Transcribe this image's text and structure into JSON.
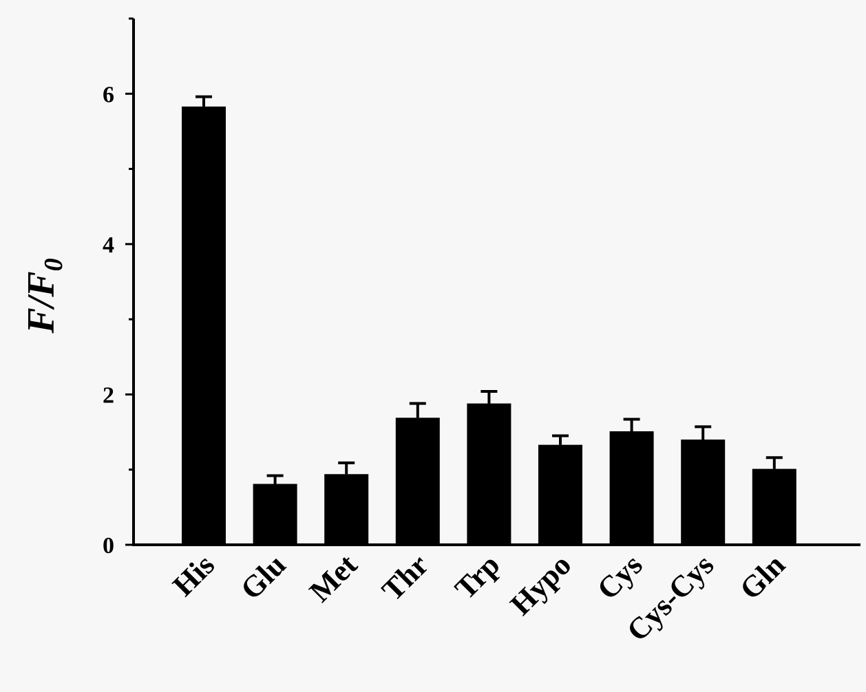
{
  "chart_data": {
    "type": "bar",
    "title": "",
    "xlabel": "",
    "ylabel": "F/F",
    "ylabel_subscript": "0",
    "categories": [
      "His",
      "Glu",
      "Met",
      "Thr",
      "Trp",
      "Hypo",
      "Cys",
      "Cys-Cys",
      "Gln"
    ],
    "values": [
      5.83,
      0.81,
      0.94,
      1.69,
      1.88,
      1.33,
      1.51,
      1.4,
      1.01
    ],
    "errors": [
      0.13,
      0.11,
      0.15,
      0.19,
      0.16,
      0.12,
      0.16,
      0.17,
      0.15
    ],
    "ylim": [
      0,
      7
    ],
    "yticks": [
      0,
      2,
      4,
      6
    ],
    "ytick_labels": [
      "0",
      "2",
      "4",
      "6"
    ],
    "bar_color": "#000000",
    "grid": false,
    "legend": "none"
  }
}
